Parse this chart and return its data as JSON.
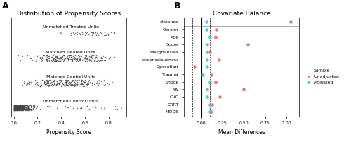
{
  "title_A": "Distribution of Propensity Scores",
  "title_B": "Covariate Balance",
  "xlabel_A": "Propensity Score",
  "xlabel_B": "Mean Differences",
  "groups_A": [
    "Unmatched Treated Units",
    "Matched Treated Units",
    "Matched Control Units",
    "Unmatched Control Units"
  ],
  "ylabel_B": [
    "distance",
    "Gender",
    "Age",
    "Score",
    "Malignancies",
    "unconsciousness",
    "Operation",
    "Trauma",
    "Shock",
    "MV",
    "CVC",
    "CRRT",
    "MODS"
  ],
  "unadjusted_x": [
    1.05,
    0.18,
    0.17,
    0.55,
    0.1,
    0.21,
    -0.08,
    0.12,
    0.17,
    0.5,
    0.22,
    0.13,
    0.12
  ],
  "adjusted_x": [
    0.06,
    0.06,
    0.1,
    0.07,
    0.07,
    0.07,
    0.07,
    0.02,
    0.1,
    0.07,
    0.07,
    0.1,
    0.1
  ],
  "color_unadjusted": "#F07070",
  "color_adjusted": "#50C8C8",
  "vline_x": 0.0,
  "vline_dash1": -0.1,
  "vline_dash2": 0.1,
  "xlim_B": [
    -0.2,
    1.15
  ],
  "bg_color": "#ffffff",
  "panel_label_fontsize": 9,
  "title_fontsize": 6.5,
  "tick_fontsize": 4.5,
  "label_fontsize": 5.5,
  "legend_fontsize": 4.5,
  "seed_unmatched_treated": 42,
  "seed_matched_treated": 7,
  "seed_matched_control": 13,
  "seed_unmatched_control": 99
}
